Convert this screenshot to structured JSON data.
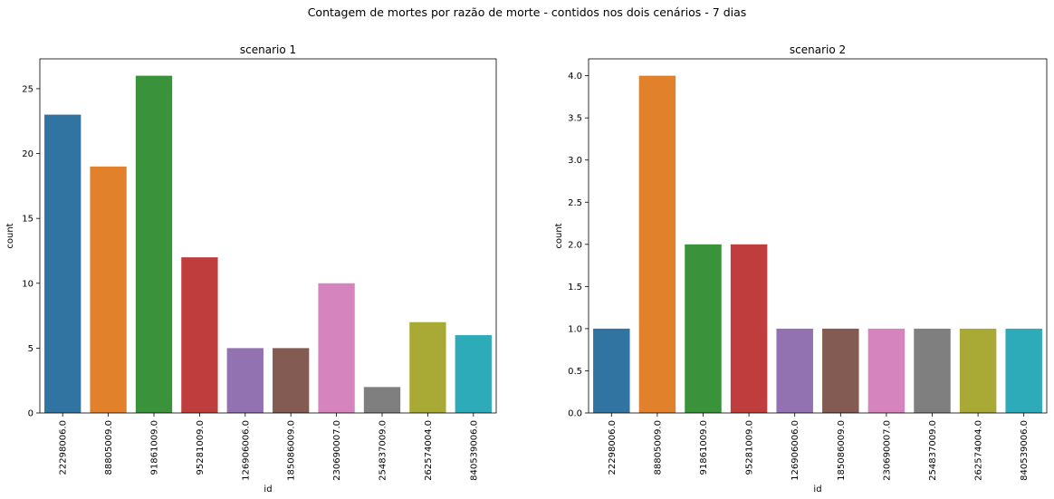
{
  "figure": {
    "suptitle": "Contagem de mortes por razão de morte - contidos nos dois cenários - 7 dias"
  },
  "palette": [
    "#3274a1",
    "#e1812c",
    "#3a923a",
    "#c03d3e",
    "#9372b2",
    "#845b53",
    "#d684bd",
    "#7f7f7f",
    "#a9aa35",
    "#2eabb8"
  ],
  "chart_data": [
    {
      "type": "bar",
      "title": "scenario 1",
      "xlabel": "id",
      "ylabel": "count",
      "categories": [
        "22298006.0",
        "88805009.0",
        "91861009.0",
        "95281009.0",
        "126906006.0",
        "185086009.0",
        "230690007.0",
        "254837009.0",
        "262574004.0",
        "840539006.0"
      ],
      "values": [
        23,
        19,
        26,
        12,
        5,
        5,
        10,
        2,
        7,
        6
      ],
      "ylim": [
        0,
        27.3
      ],
      "yticks": [
        0,
        5,
        10,
        15,
        20,
        25
      ],
      "ytick_labels": [
        "0",
        "5",
        "10",
        "15",
        "20",
        "25"
      ],
      "grid": false
    },
    {
      "type": "bar",
      "title": "scenario 2",
      "xlabel": "id",
      "ylabel": "count",
      "categories": [
        "22298006.0",
        "88805009.0",
        "91861009.0",
        "95281009.0",
        "126906006.0",
        "185086009.0",
        "230690007.0",
        "254837009.0",
        "262574004.0",
        "840539006.0"
      ],
      "values": [
        1,
        4,
        2,
        2,
        1,
        1,
        1,
        1,
        1,
        1
      ],
      "ylim": [
        0,
        4.2
      ],
      "yticks": [
        0,
        0.5,
        1.0,
        1.5,
        2.0,
        2.5,
        3.0,
        3.5,
        4.0
      ],
      "ytick_labels": [
        "0.0",
        "0.5",
        "1.0",
        "1.5",
        "2.0",
        "2.5",
        "3.0",
        "3.5",
        "4.0"
      ],
      "grid": false
    }
  ]
}
